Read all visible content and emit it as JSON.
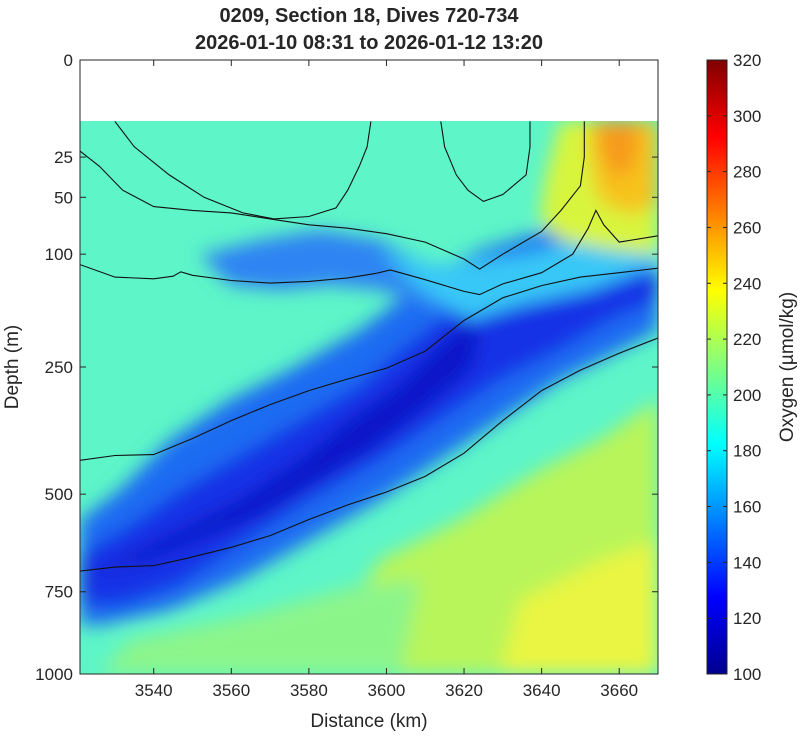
{
  "chart_data": {
    "type": "heatmap",
    "title": [
      "0209, Section 18, Dives 720-734",
      "2026-01-10 08:31 to 2026-01-12 13:20"
    ],
    "xlabel": "Distance (km)",
    "ylabel": "Depth (m)",
    "colorbar_label": "Oxygen (µmol/kg)",
    "xlim": [
      3521,
      3670
    ],
    "ylim": [
      0,
      1000
    ],
    "y_scale": "sqrt",
    "x_ticks": [
      3540,
      3560,
      3580,
      3600,
      3620,
      3640,
      3660
    ],
    "y_ticks": [
      0,
      25,
      50,
      100,
      250,
      500,
      750,
      1000
    ],
    "colorbar_ticks": [
      100,
      120,
      140,
      160,
      180,
      200,
      220,
      240,
      260,
      280,
      300,
      320
    ],
    "colorbar_range": [
      100,
      320
    ],
    "data_top_depth": 10,
    "grid": false,
    "contours": [
      {
        "points": [
          [
            3521,
            22
          ],
          [
            3526,
            30
          ],
          [
            3532,
            45
          ],
          [
            3540,
            57
          ],
          [
            3550,
            60
          ],
          [
            3560,
            62
          ],
          [
            3570,
            67
          ],
          [
            3580,
            72
          ],
          [
            3590,
            75
          ],
          [
            3600,
            80
          ],
          [
            3610,
            88
          ],
          [
            3620,
            105
          ],
          [
            3624,
            116
          ],
          [
            3630,
            100
          ],
          [
            3640,
            78
          ],
          [
            3645,
            60
          ],
          [
            3650,
            42
          ],
          [
            3651,
            25
          ],
          [
            3651,
            10
          ]
        ]
      },
      {
        "points": [
          [
            3521,
            111
          ],
          [
            3530,
            125
          ],
          [
            3540,
            127
          ],
          [
            3545,
            124
          ],
          [
            3547,
            119
          ],
          [
            3550,
            123
          ],
          [
            3560,
            129
          ],
          [
            3570,
            132
          ],
          [
            3580,
            130
          ],
          [
            3590,
            126
          ],
          [
            3597,
            121
          ],
          [
            3601,
            117
          ],
          [
            3610,
            128
          ],
          [
            3620,
            142
          ],
          [
            3624,
            146
          ],
          [
            3630,
            133
          ],
          [
            3640,
            120
          ],
          [
            3648,
            100
          ],
          [
            3652,
            75
          ],
          [
            3654,
            60
          ],
          [
            3656,
            72
          ],
          [
            3660,
            88
          ],
          [
            3670,
            82
          ]
        ]
      },
      {
        "points": [
          [
            3521,
            425
          ],
          [
            3530,
            415
          ],
          [
            3540,
            413
          ],
          [
            3550,
            380
          ],
          [
            3560,
            345
          ],
          [
            3570,
            315
          ],
          [
            3580,
            290
          ],
          [
            3590,
            270
          ],
          [
            3600,
            252
          ],
          [
            3610,
            225
          ],
          [
            3620,
            180
          ],
          [
            3630,
            150
          ],
          [
            3640,
            135
          ],
          [
            3650,
            125
          ],
          [
            3660,
            120
          ],
          [
            3670,
            115
          ]
        ]
      },
      {
        "points": [
          [
            3521,
            693
          ],
          [
            3530,
            682
          ],
          [
            3540,
            678
          ],
          [
            3548,
            660
          ],
          [
            3560,
            630
          ],
          [
            3570,
            600
          ],
          [
            3580,
            560
          ],
          [
            3590,
            525
          ],
          [
            3600,
            495
          ],
          [
            3610,
            460
          ],
          [
            3620,
            410
          ],
          [
            3630,
            345
          ],
          [
            3640,
            290
          ],
          [
            3650,
            255
          ],
          [
            3660,
            228
          ],
          [
            3670,
            205
          ]
        ]
      },
      {
        "points": [
          [
            3530,
            10
          ],
          [
            3535,
            20
          ],
          [
            3544,
            35
          ],
          [
            3553,
            50
          ],
          [
            3563,
            62
          ],
          [
            3571,
            67
          ],
          [
            3580,
            65
          ],
          [
            3587,
            58
          ],
          [
            3590,
            45
          ],
          [
            3593,
            30
          ],
          [
            3595,
            20
          ],
          [
            3596,
            10
          ]
        ]
      },
      {
        "points": [
          [
            3614,
            10
          ],
          [
            3615,
            20
          ],
          [
            3618,
            35
          ],
          [
            3621,
            45
          ],
          [
            3625,
            53
          ],
          [
            3630,
            48
          ],
          [
            3636,
            35
          ],
          [
            3637,
            20
          ],
          [
            3637,
            10
          ]
        ]
      }
    ]
  }
}
